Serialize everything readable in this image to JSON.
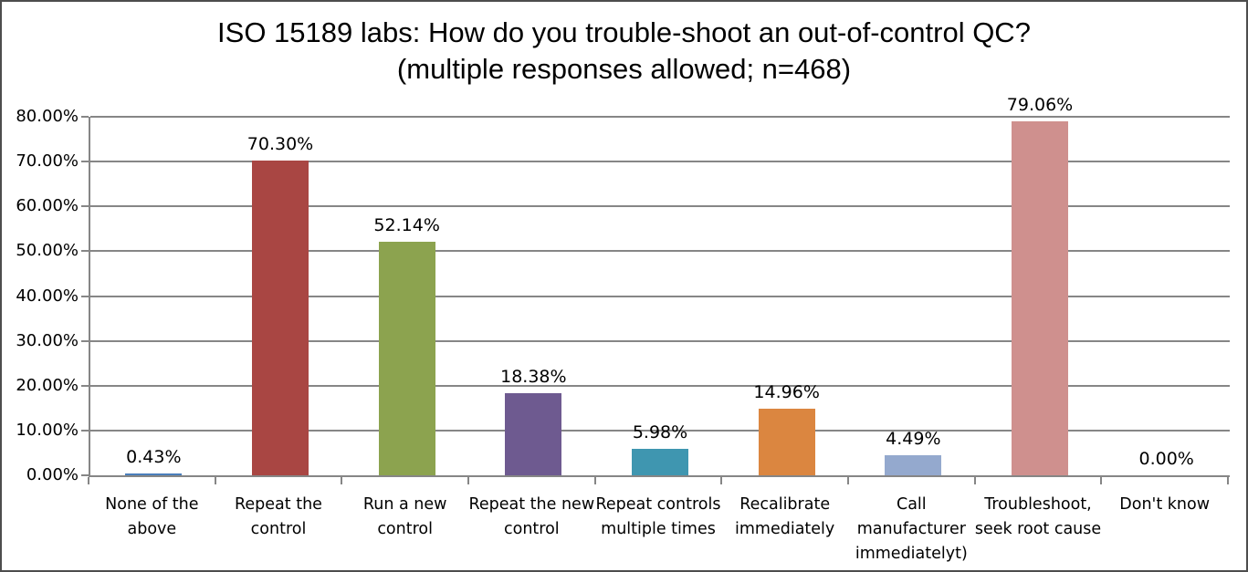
{
  "chart_data": {
    "type": "bar",
    "title": "ISO 15189 labs: How do you trouble-shoot an out-of-control QC?",
    "subtitle": "(multiple responses allowed; n=468)",
    "categories": [
      "None of the above",
      "Repeat the control",
      "Run a new control",
      "Repeat the new control",
      "Repeat controls multiple times",
      "Recalibrate immediately",
      "Call manufacturer immediatelyt)",
      "Troubleshoot, seek root cause",
      "Don't know"
    ],
    "values": [
      0.43,
      70.3,
      52.14,
      18.38,
      5.98,
      14.96,
      4.49,
      79.06,
      0.0
    ],
    "value_labels": [
      "0.43%",
      "70.30%",
      "52.14%",
      "18.38%",
      "5.98%",
      "14.96%",
      "4.49%",
      "79.06%",
      "0.00%"
    ],
    "bar_colors": [
      "#4A7EBB",
      "#A94643",
      "#8CA34F",
      "#6E5A90",
      "#3F96B0",
      "#DB8640",
      "#94A9CE",
      "#CF908E",
      "#B9CC83"
    ],
    "xlabel": "",
    "ylabel": "",
    "ylim": [
      0,
      80
    ],
    "y_tick_step": 10,
    "y_tick_labels": [
      "0.00%",
      "10.00%",
      "20.00%",
      "30.00%",
      "40.00%",
      "50.00%",
      "60.00%",
      "70.00%",
      "80.00%"
    ],
    "grid": "horizontal",
    "legend_position": "none"
  },
  "style_colors": {
    "gridline": "#868686",
    "axis_line": "#868686",
    "frame_border": "#4d4d4d",
    "text": "#000000",
    "background": "#ffffff"
  }
}
